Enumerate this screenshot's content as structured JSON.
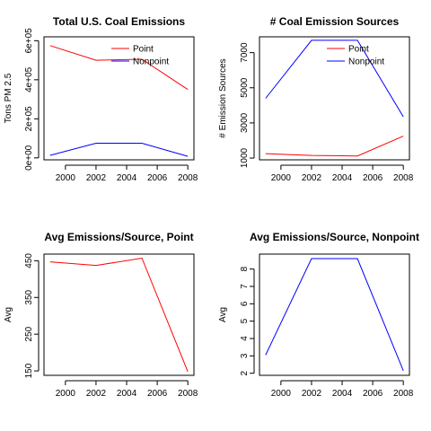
{
  "chart_data": [
    {
      "type": "line",
      "title": "Total U.S. Coal Emissions",
      "xlabel": "",
      "ylabel": "Tons PM 2.5",
      "x": [
        1999,
        2002,
        2005,
        2008
      ],
      "xlim": [
        1998.6,
        2008.4
      ],
      "ylim": [
        -10000,
        620000
      ],
      "xticks": [
        2000,
        2002,
        2004,
        2006,
        2008
      ],
      "xtick_labels": [
        "2000",
        "2002",
        "2004",
        "2006",
        "2008"
      ],
      "yticks": [
        0,
        200000,
        400000,
        600000
      ],
      "ytick_labels": [
        "0e+00",
        "2e+05",
        "4e+05",
        "6e+05"
      ],
      "legend": "top-right",
      "series": [
        {
          "name": "Point",
          "color": "#ff0000",
          "values": [
            575000,
            500000,
            505000,
            350000
          ]
        },
        {
          "name": "Nonpoint",
          "color": "#0000ff",
          "values": [
            13000,
            75000,
            75000,
            8000
          ]
        }
      ]
    },
    {
      "type": "line",
      "title": "# Coal Emission Sources",
      "xlabel": "",
      "ylabel": "# Emission Sources",
      "x": [
        1999,
        2002,
        2005,
        2008
      ],
      "xlim": [
        1998.6,
        2008.4
      ],
      "ylim": [
        900,
        7900
      ],
      "xticks": [
        2000,
        2002,
        2004,
        2006,
        2008
      ],
      "xtick_labels": [
        "2000",
        "2002",
        "2004",
        "2006",
        "2008"
      ],
      "yticks": [
        1000,
        3000,
        5000,
        7000
      ],
      "ytick_labels": [
        "1000",
        "3000",
        "5000",
        "7000"
      ],
      "legend": "top-right",
      "series": [
        {
          "name": "Point",
          "color": "#ff0000",
          "values": [
            1250,
            1150,
            1120,
            2250
          ]
        },
        {
          "name": "Nonpoint",
          "color": "#0000ff",
          "values": [
            4400,
            7700,
            7700,
            3350
          ]
        }
      ]
    },
    {
      "type": "line",
      "title": "Avg Emissions/Source, Point",
      "xlabel": "",
      "ylabel": "Avg",
      "x": [
        1999,
        2002,
        2005,
        2008
      ],
      "xlim": [
        1998.6,
        2008.4
      ],
      "ylim": [
        138,
        468
      ],
      "xticks": [
        2000,
        2002,
        2004,
        2006,
        2008
      ],
      "xtick_labels": [
        "2000",
        "2002",
        "2004",
        "2006",
        "2008"
      ],
      "yticks": [
        150,
        250,
        350,
        450
      ],
      "ytick_labels": [
        "150",
        "250",
        "350",
        "450"
      ],
      "legend": "none",
      "series": [
        {
          "color": "#ff0000",
          "values": [
            447,
            437,
            457,
            148
          ]
        }
      ]
    },
    {
      "type": "line",
      "title": "Avg Emissions/Source, Nonpoint",
      "xlabel": "",
      "ylabel": "Avg",
      "x": [
        1999,
        2002,
        2005,
        2008
      ],
      "xlim": [
        1998.6,
        2008.4
      ],
      "ylim": [
        1.88,
        8.86
      ],
      "xticks": [
        2000,
        2002,
        2004,
        2006,
        2008
      ],
      "xtick_labels": [
        "2000",
        "2002",
        "2004",
        "2006",
        "2008"
      ],
      "yticks": [
        2,
        3,
        4,
        5,
        6,
        7,
        8
      ],
      "ytick_labels": [
        "2",
        "3",
        "4",
        "5",
        "6",
        "7",
        "8"
      ],
      "legend": "none",
      "series": [
        {
          "color": "#0000ff",
          "values": [
            3.05,
            8.6,
            8.6,
            2.15
          ]
        }
      ]
    }
  ]
}
